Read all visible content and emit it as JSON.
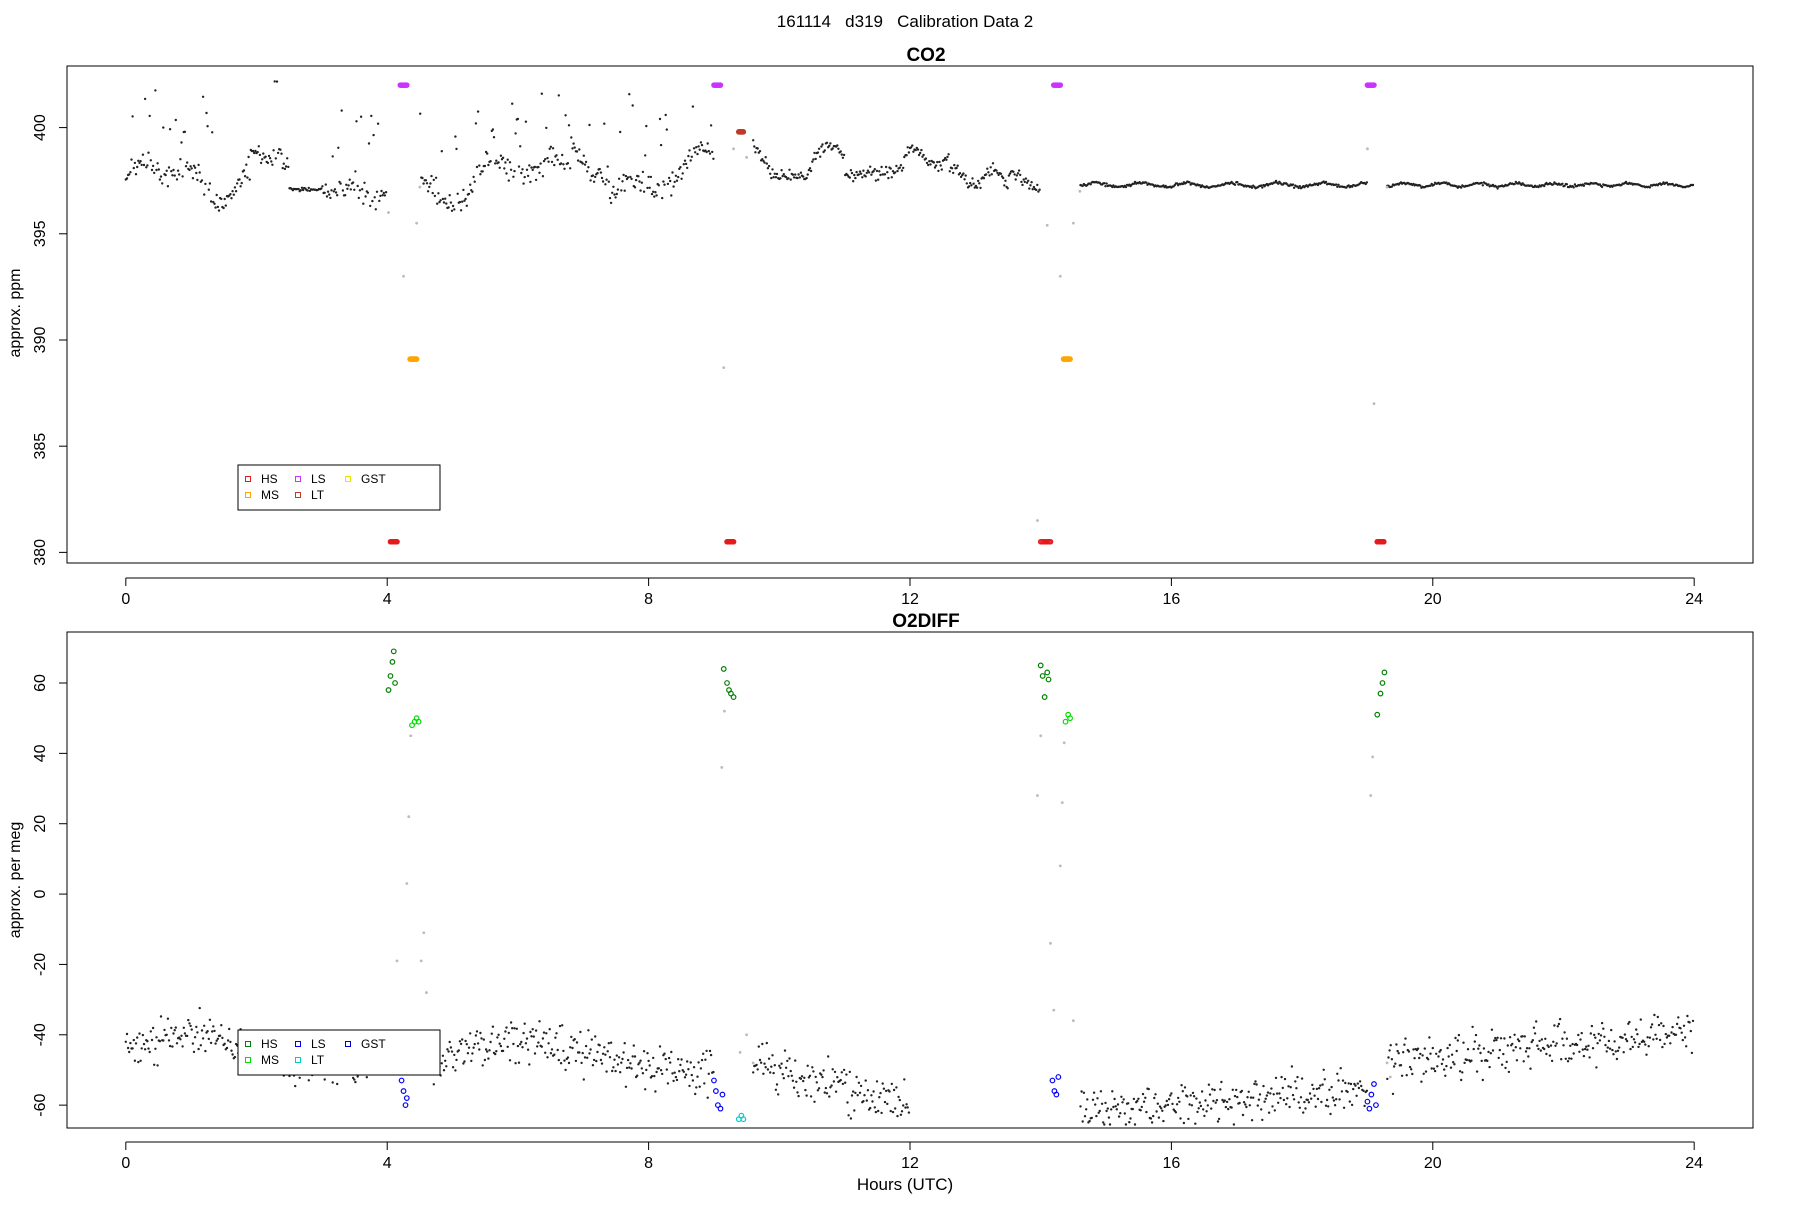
{
  "page_title": "161114   d319   Calibration Data 2",
  "x_axis_label": "Hours (UTC)",
  "colors": {
    "data": "#222222",
    "transition": "#bbbbbb",
    "HS_co2": "#e41a1c",
    "MS_co2": "#ffa500",
    "LS_co2": "#cc33ff",
    "LT_co2": "#c0392b",
    "GST_co2": "#e6e600",
    "HS_o2": "#008000",
    "MS_o2": "#00dd00",
    "LS_o2": "#0000ff",
    "LT_o2": "#00cccc",
    "GST_o2": "#0000cc"
  },
  "chart_data": [
    {
      "id": "co2",
      "type": "scatter",
      "title": "CO2",
      "xlabel": "",
      "ylabel": "approx. ppm",
      "xlim": [
        -0.9,
        24.9
      ],
      "ylim": [
        379.5,
        402.9
      ],
      "xticks": [
        0,
        4,
        8,
        12,
        16,
        20,
        24
      ],
      "yticks": [
        380,
        385,
        390,
        395,
        400
      ],
      "legend": {
        "placement": "bottom-left",
        "entries": [
          {
            "label": "HS",
            "color_key": "HS_co2"
          },
          {
            "label": "MS",
            "color_key": "MS_co2"
          },
          {
            "label": "LS",
            "color_key": "LS_co2"
          },
          {
            "label": "LT",
            "color_key": "LT_co2"
          },
          {
            "label": "GST",
            "color_key": "GST_co2"
          }
        ]
      },
      "calibrations": [
        {
          "name": "HS",
          "x": [
            4.05,
            4.15
          ],
          "y": [
            380.5,
            380.5
          ]
        },
        {
          "name": "LS",
          "x": [
            4.2,
            4.3
          ],
          "y": [
            402.0,
            402.0
          ]
        },
        {
          "name": "MS",
          "x": [
            4.35,
            4.45
          ],
          "y": [
            389.1,
            389.1
          ]
        },
        {
          "name": "LS",
          "x": [
            9.0,
            9.1
          ],
          "y": [
            402.0,
            402.0
          ]
        },
        {
          "name": "HS",
          "x": [
            9.2,
            9.3
          ],
          "y": [
            380.5,
            380.5
          ]
        },
        {
          "name": "LT",
          "x": [
            9.38,
            9.45
          ],
          "y": [
            399.8,
            399.8
          ]
        },
        {
          "name": "HS",
          "x": [
            14.0,
            14.15
          ],
          "y": [
            380.5,
            380.5
          ]
        },
        {
          "name": "LS",
          "x": [
            14.2,
            14.3
          ],
          "y": [
            402.0,
            402.0
          ]
        },
        {
          "name": "MS",
          "x": [
            14.35,
            14.45
          ],
          "y": [
            389.1,
            389.1
          ]
        },
        {
          "name": "LS",
          "x": [
            19.0,
            19.1
          ],
          "y": [
            402.0,
            402.0
          ]
        },
        {
          "name": "HS",
          "x": [
            19.15,
            19.25
          ],
          "y": [
            380.5,
            380.5
          ]
        }
      ],
      "transitions": [
        {
          "x": 4.02,
          "y": 396.0
        },
        {
          "x": 4.25,
          "y": 393.0
        },
        {
          "x": 4.45,
          "y": 395.5
        },
        {
          "x": 4.5,
          "y": 397.2
        },
        {
          "x": 9.15,
          "y": 388.7
        },
        {
          "x": 9.3,
          "y": 399.0
        },
        {
          "x": 9.5,
          "y": 398.6
        },
        {
          "x": 13.95,
          "y": 381.5
        },
        {
          "x": 14.1,
          "y": 395.4
        },
        {
          "x": 14.3,
          "y": 393.0
        },
        {
          "x": 14.5,
          "y": 395.5
        },
        {
          "x": 14.6,
          "y": 397.0
        },
        {
          "x": 19.0,
          "y": 399.0
        },
        {
          "x": 19.1,
          "y": 387.0
        },
        {
          "x": 19.3,
          "y": 397.2
        }
      ]
    },
    {
      "id": "o2diff",
      "type": "scatter",
      "title": "O2DIFF",
      "xlabel": "Hours (UTC)",
      "ylabel": "approx. per meg",
      "xlim": [
        -0.9,
        24.9
      ],
      "ylim": [
        -66.5,
        74.5
      ],
      "xticks": [
        0,
        4,
        8,
        12,
        16,
        20,
        24
      ],
      "yticks": [
        -60,
        -40,
        -20,
        0,
        20,
        40,
        60
      ],
      "legend": {
        "placement": "bottom-left",
        "entries": [
          {
            "label": "HS",
            "color_key": "HS_o2"
          },
          {
            "label": "MS",
            "color_key": "MS_o2"
          },
          {
            "label": "LS",
            "color_key": "LS_o2"
          },
          {
            "label": "LT",
            "color_key": "LT_o2"
          },
          {
            "label": "GST",
            "color_key": "GST_o2"
          }
        ]
      },
      "calibrations": [
        {
          "name": "HS",
          "x": [
            4.02,
            4.05,
            4.08,
            4.1,
            4.12
          ],
          "y": [
            58,
            62,
            66,
            69,
            60
          ]
        },
        {
          "name": "LS",
          "x": [
            4.22,
            4.25,
            4.28,
            4.3
          ],
          "y": [
            -53,
            -56,
            -60,
            -58
          ]
        },
        {
          "name": "MS",
          "x": [
            4.38,
            4.42,
            4.45,
            4.48
          ],
          "y": [
            48,
            49,
            50,
            49
          ]
        },
        {
          "name": "LS",
          "x": [
            9.0,
            9.03,
            9.06,
            9.1,
            9.13
          ],
          "y": [
            -53,
            -56,
            -60,
            -61,
            -57
          ]
        },
        {
          "name": "HS",
          "x": [
            9.15,
            9.2,
            9.23,
            9.26,
            9.3
          ],
          "y": [
            64,
            60,
            58,
            57,
            56
          ]
        },
        {
          "name": "LT",
          "x": [
            9.38,
            9.42,
            9.45
          ],
          "y": [
            -64,
            -63,
            -64
          ]
        },
        {
          "name": "HS",
          "x": [
            14.0,
            14.03,
            14.06,
            14.1,
            14.12
          ],
          "y": [
            65,
            62,
            56,
            63,
            61
          ]
        },
        {
          "name": "LS",
          "x": [
            14.18,
            14.21,
            14.24,
            14.27
          ],
          "y": [
            -53,
            -56,
            -57,
            -52
          ]
        },
        {
          "name": "MS",
          "x": [
            14.38,
            14.42,
            14.45
          ],
          "y": [
            49,
            51,
            50
          ]
        },
        {
          "name": "LS",
          "x": [
            19.0,
            19.03,
            19.06,
            19.1,
            19.13
          ],
          "y": [
            -59,
            -61,
            -57,
            -54,
            -60
          ]
        },
        {
          "name": "HS",
          "x": [
            19.15,
            19.2,
            19.23,
            19.26
          ],
          "y": [
            51,
            57,
            60,
            63
          ]
        }
      ],
      "transitions": [
        {
          "x": 4.15,
          "y": -19
        },
        {
          "x": 4.3,
          "y": 3
        },
        {
          "x": 4.33,
          "y": 22
        },
        {
          "x": 4.36,
          "y": 45
        },
        {
          "x": 4.52,
          "y": -19
        },
        {
          "x": 4.56,
          "y": -11
        },
        {
          "x": 4.6,
          "y": -28
        },
        {
          "x": 9.12,
          "y": 36
        },
        {
          "x": 9.16,
          "y": 52
        },
        {
          "x": 9.4,
          "y": -45
        },
        {
          "x": 9.5,
          "y": -40
        },
        {
          "x": 9.6,
          "y": -48
        },
        {
          "x": 13.95,
          "y": 28
        },
        {
          "x": 14.0,
          "y": 45
        },
        {
          "x": 14.15,
          "y": -14
        },
        {
          "x": 14.2,
          "y": -33
        },
        {
          "x": 14.3,
          "y": 8
        },
        {
          "x": 14.33,
          "y": 26
        },
        {
          "x": 14.36,
          "y": 43
        },
        {
          "x": 14.5,
          "y": -36
        },
        {
          "x": 19.05,
          "y": 28
        },
        {
          "x": 19.08,
          "y": 39
        },
        {
          "x": 19.3,
          "y": -48
        },
        {
          "x": 19.35,
          "y": -52
        }
      ]
    }
  ]
}
